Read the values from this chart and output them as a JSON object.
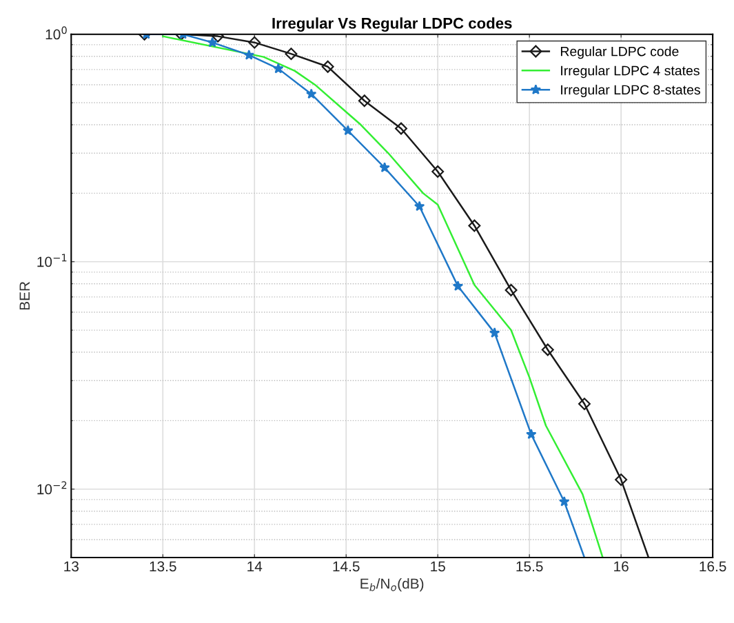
{
  "chart_data": {
    "type": "line",
    "title": "Irregular Vs Regular LDPC codes",
    "xlabel": "E$_{b}$/N$_{o}$(dB)",
    "ylabel": "BER",
    "log": "y",
    "grid": true,
    "legend": "top right",
    "xlim": [
      13,
      16.5
    ],
    "xticks": [
      13,
      13.5,
      14,
      14.5,
      15,
      15.5,
      16,
      16.5
    ],
    "ylim": [
      0.005,
      1
    ],
    "yticks": [
      {
        "value": 0.01,
        "label": "10$^{−2}$"
      },
      {
        "value": 0.1,
        "label": "10$^{−1}$"
      },
      {
        "value": 1,
        "label": "10$^{0}$"
      }
    ],
    "series": [
      {
        "name": "Regular LDPC code",
        "color": "#1a1a1a",
        "marker": "diamond",
        "x": [
          13.4,
          13.6,
          13.8,
          14.0,
          14.2,
          14.4,
          14.6,
          14.8,
          15.0,
          15.2,
          15.4,
          15.6,
          15.8,
          16.0,
          16.15
        ],
        "values": [
          1.0,
          1.0,
          0.98,
          0.92,
          0.82,
          0.72,
          0.51,
          0.385,
          0.249,
          0.144,
          0.075,
          0.041,
          0.0237,
          0.011,
          0.005
        ]
      },
      {
        "name": "Irregular LDPC 4 states",
        "color": "#33ee33",
        "marker": "none",
        "x": [
          13.5,
          14.05,
          14.22,
          14.33,
          14.58,
          14.73,
          14.92,
          15.0,
          15.2,
          15.4,
          15.5,
          15.59,
          15.79,
          15.9
        ],
        "values": [
          0.98,
          0.795,
          0.69,
          0.6,
          0.4,
          0.3,
          0.2,
          0.178,
          0.079,
          0.05,
          0.031,
          0.019,
          0.0095,
          0.005
        ]
      },
      {
        "name": "Irregular LDPC 8-states",
        "color": "#1f78c8",
        "marker": "star",
        "x": [
          13.41,
          13.61,
          13.77,
          13.97,
          14.13,
          14.31,
          14.51,
          14.71,
          14.9,
          15.11,
          15.31,
          15.51,
          15.69,
          15.8
        ],
        "values": [
          1.0,
          1.0,
          0.92,
          0.81,
          0.706,
          0.546,
          0.377,
          0.259,
          0.175,
          0.078,
          0.0486,
          0.0174,
          0.0088,
          0.005
        ]
      }
    ]
  }
}
